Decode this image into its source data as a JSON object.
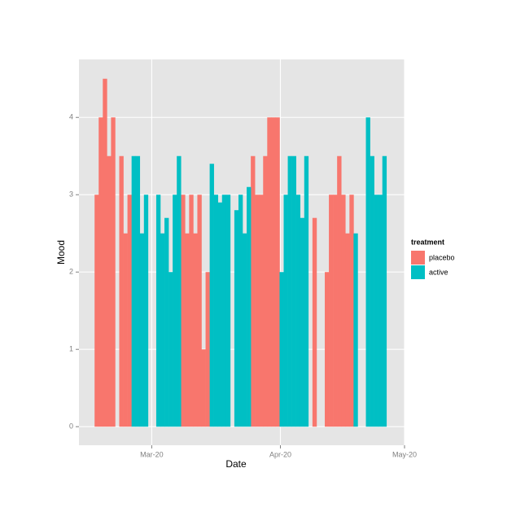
{
  "chart_data": {
    "type": "bar",
    "xlabel": "Date",
    "ylabel": "Mood",
    "categories": [
      null,
      null,
      null,
      null,
      null,
      null,
      null,
      null,
      null,
      null,
      null,
      null,
      null,
      null,
      null,
      null,
      null,
      null,
      null,
      null,
      null,
      null,
      null,
      null,
      null,
      null,
      null,
      null,
      null,
      null,
      null,
      null,
      null,
      null,
      null,
      null,
      null,
      null,
      null,
      null,
      null,
      null,
      null,
      null,
      null,
      null,
      null,
      null,
      null,
      null,
      null,
      null,
      null,
      null,
      null,
      null,
      null,
      null,
      null,
      null,
      null,
      null,
      null,
      null,
      null,
      null,
      null,
      null,
      null,
      null,
      null
    ],
    "series": [
      {
        "name": "placebo",
        "color": "#F8766D",
        "values": [
          3,
          4,
          4.5,
          3.5,
          4,
          null,
          3.5,
          2.5,
          3,
          null,
          null,
          null,
          null,
          null,
          null,
          null,
          null,
          null,
          null,
          null,
          null,
          3,
          2.5,
          3,
          2.5,
          3,
          1,
          2,
          null,
          null,
          null,
          null,
          null,
          null,
          null,
          null,
          null,
          null,
          3.5,
          3,
          3,
          3.5,
          4,
          4,
          4,
          null,
          null,
          null,
          null,
          null,
          null,
          null,
          null,
          2.7,
          null,
          null,
          2,
          3,
          3,
          3.5,
          3,
          2.5,
          3,
          null,
          null,
          null,
          null,
          null,
          null,
          null,
          null
        ]
      },
      {
        "name": "active",
        "color": "#00BFC4",
        "values": [
          null,
          null,
          null,
          null,
          null,
          null,
          null,
          null,
          null,
          3.5,
          3.5,
          2.5,
          3,
          null,
          null,
          3,
          2.5,
          2.7,
          2,
          3,
          3.5,
          null,
          null,
          null,
          null,
          null,
          null,
          null,
          3.4,
          3,
          2.9,
          3,
          3,
          null,
          2.8,
          3,
          2.5,
          3.1,
          null,
          null,
          null,
          null,
          null,
          null,
          null,
          2,
          3,
          3.5,
          3.5,
          3,
          2.7,
          3.5,
          null,
          null,
          null,
          null,
          null,
          null,
          null,
          null,
          null,
          null,
          null,
          2.5,
          null,
          null,
          4,
          3.5,
          3,
          3,
          3.5
        ]
      }
    ],
    "legend_title": "treatment",
    "xlim": [
      -4.3,
      74.9
    ],
    "xticks": [
      {
        "value": 13.4,
        "label": "Mar-20"
      },
      {
        "value": 44.7,
        "label": "Apr-20"
      },
      {
        "value": 74.9,
        "label": "May-20"
      }
    ],
    "ylim": [
      -0.24,
      4.75
    ],
    "yticks": [
      0,
      1,
      2,
      3,
      4
    ],
    "grid": true
  }
}
